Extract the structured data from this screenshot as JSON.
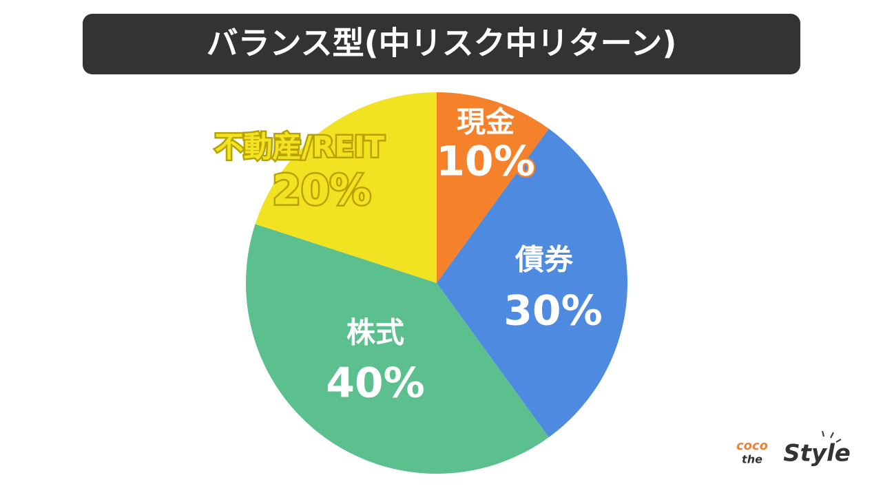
{
  "chart_data": {
    "type": "pie",
    "title": "バランス型(中リスク中リターン)",
    "categories": [
      "現金",
      "債券",
      "株式",
      "不動産/REIT"
    ],
    "values": [
      10,
      30,
      40,
      20
    ],
    "value_labels": [
      "10%",
      "30%",
      "40%",
      "20%"
    ],
    "colors": [
      "#f5812a",
      "#4e8ae0",
      "#5bbf8e",
      "#f1e322"
    ]
  },
  "logo": {
    "top": "coco",
    "middle": "the",
    "main": "Style"
  }
}
